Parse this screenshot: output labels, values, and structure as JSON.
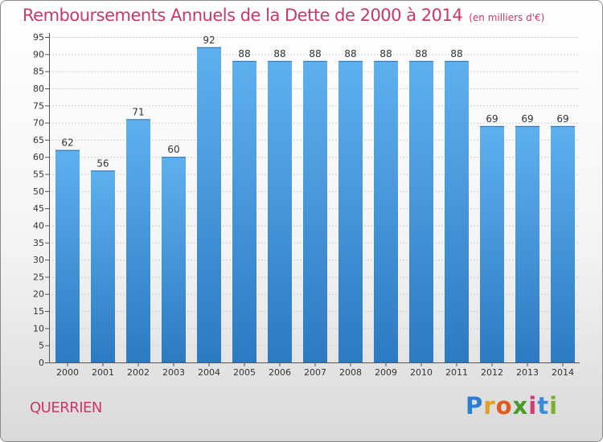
{
  "chart_data": {
    "type": "bar",
    "title": "Remboursements Annuels de la Dette de 2000 à 2014",
    "subtitle": "(en milliers d'€)",
    "categories": [
      "2000",
      "2001",
      "2002",
      "2003",
      "2004",
      "2005",
      "2006",
      "2007",
      "2008",
      "2009",
      "2010",
      "2011",
      "2012",
      "2013",
      "2014"
    ],
    "values": [
      62,
      56,
      71,
      60,
      92,
      88,
      88,
      88,
      88,
      88,
      88,
      88,
      69,
      69,
      69
    ],
    "ylim": [
      0,
      95
    ],
    "yticks": [
      0,
      5,
      10,
      15,
      20,
      25,
      30,
      35,
      40,
      45,
      50,
      55,
      60,
      65,
      70,
      75,
      80,
      85,
      90,
      95
    ],
    "xlabel": "",
    "ylabel": "",
    "grid": true
  },
  "footer": {
    "commune": "QUERRIEN",
    "brand": "Proxiti"
  },
  "colors": {
    "title": "#c8386a",
    "bar_light": "#5aabeb",
    "bar_dark": "#2f7fc7"
  }
}
